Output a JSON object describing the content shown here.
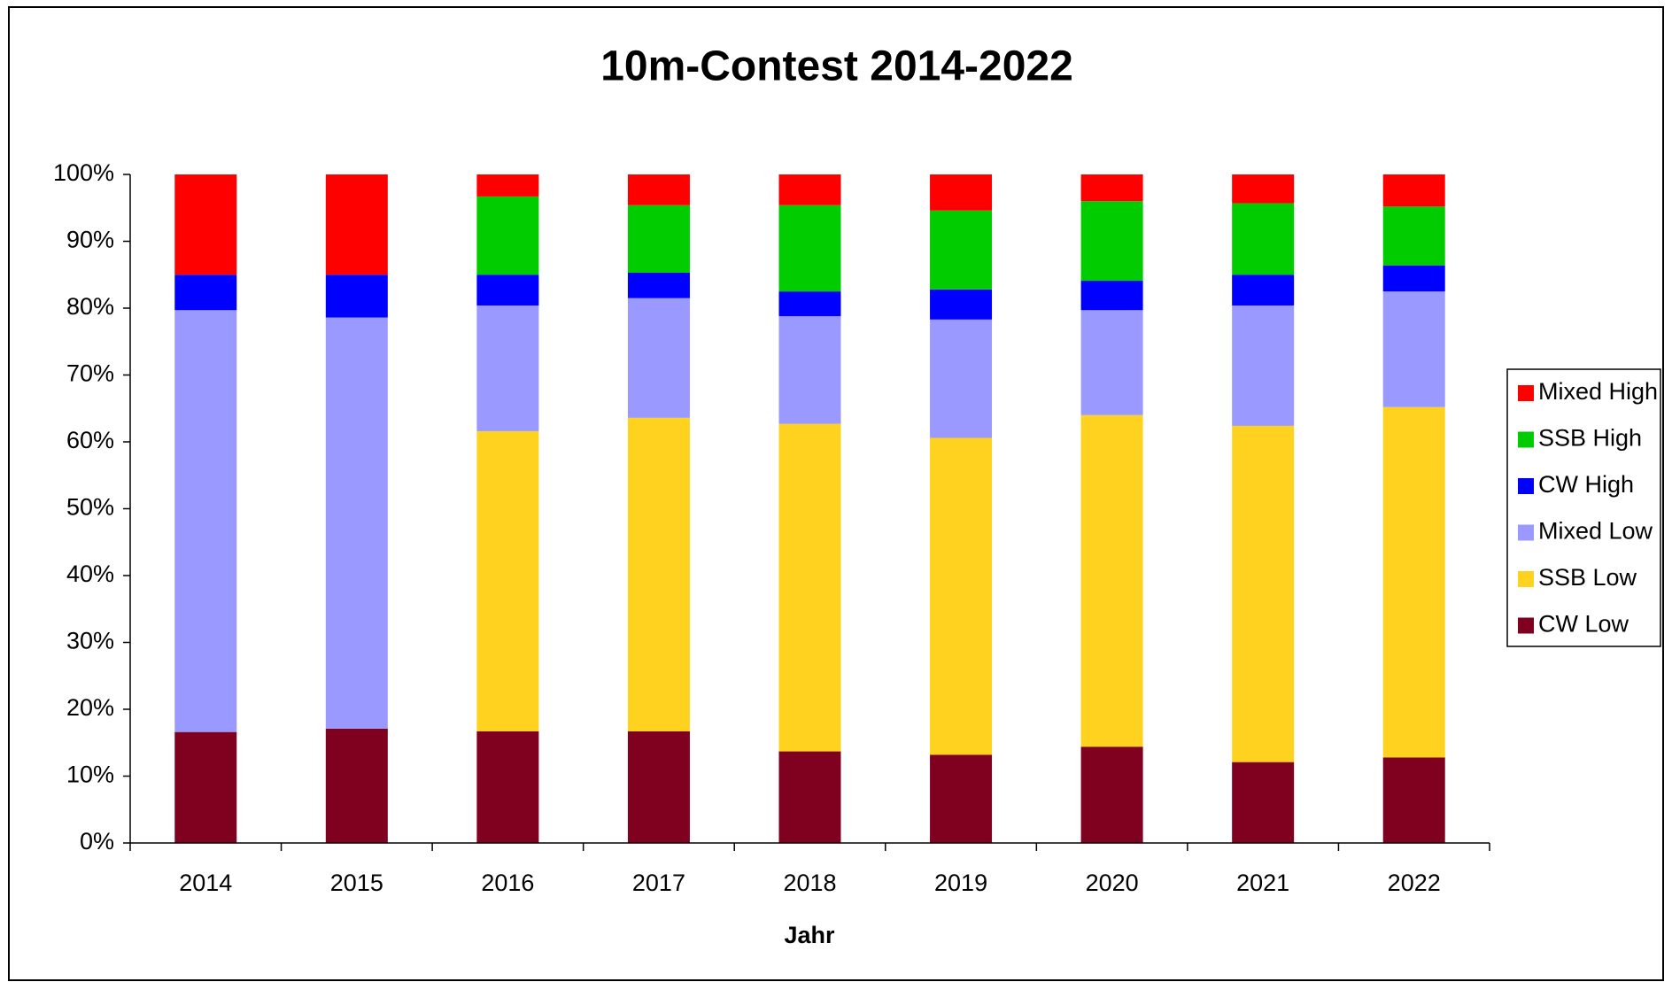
{
  "chart_data": {
    "type": "stacked-bar",
    "title": "10m-Contest 2014-2022",
    "x_label": "Jahr",
    "categories": [
      "2014",
      "2015",
      "2016",
      "2017",
      "2018",
      "2019",
      "2020",
      "2021",
      "2022"
    ],
    "series": [
      {
        "name": "CW Low",
        "color": "#800020",
        "values": [
          16.6,
          17.1,
          16.7,
          16.7,
          13.7,
          13.2,
          14.4,
          12.1,
          12.8
        ]
      },
      {
        "name": "SSB Low",
        "color": "#ffd21f",
        "values": [
          0,
          0,
          44.9,
          46.9,
          49.0,
          47.4,
          49.6,
          50.3,
          52.4
        ]
      },
      {
        "name": "Mixed Low",
        "color": "#9999ff",
        "values": [
          63.1,
          61.5,
          18.8,
          17.9,
          16.1,
          17.7,
          15.7,
          18.0,
          17.3
        ]
      },
      {
        "name": "CW High",
        "color": "#0000ff",
        "values": [
          5.3,
          6.4,
          4.6,
          3.8,
          3.7,
          4.5,
          4.4,
          4.6,
          3.9
        ]
      },
      {
        "name": "SSB High",
        "color": "#00cc00",
        "values": [
          0,
          0,
          11.7,
          10.1,
          12.9,
          11.8,
          11.9,
          10.7,
          8.8
        ]
      },
      {
        "name": "Mixed High",
        "color": "#ff0000",
        "values": [
          15.0,
          15.0,
          3.3,
          4.6,
          4.6,
          5.4,
          4.0,
          4.3,
          4.8
        ]
      }
    ],
    "ylim": [
      0,
      100
    ],
    "yticks": [
      {
        "value": 0,
        "label": "0%"
      },
      {
        "value": 10,
        "label": "10%"
      },
      {
        "value": 20,
        "label": "20%"
      },
      {
        "value": 30,
        "label": "30%"
      },
      {
        "value": 40,
        "label": "40%"
      },
      {
        "value": 50,
        "label": "50%"
      },
      {
        "value": 60,
        "label": "60%"
      },
      {
        "value": 70,
        "label": "70%"
      },
      {
        "value": 80,
        "label": "80%"
      },
      {
        "value": 90,
        "label": "90%"
      },
      {
        "value": 100,
        "label": "100%"
      }
    ],
    "legend": "right"
  }
}
